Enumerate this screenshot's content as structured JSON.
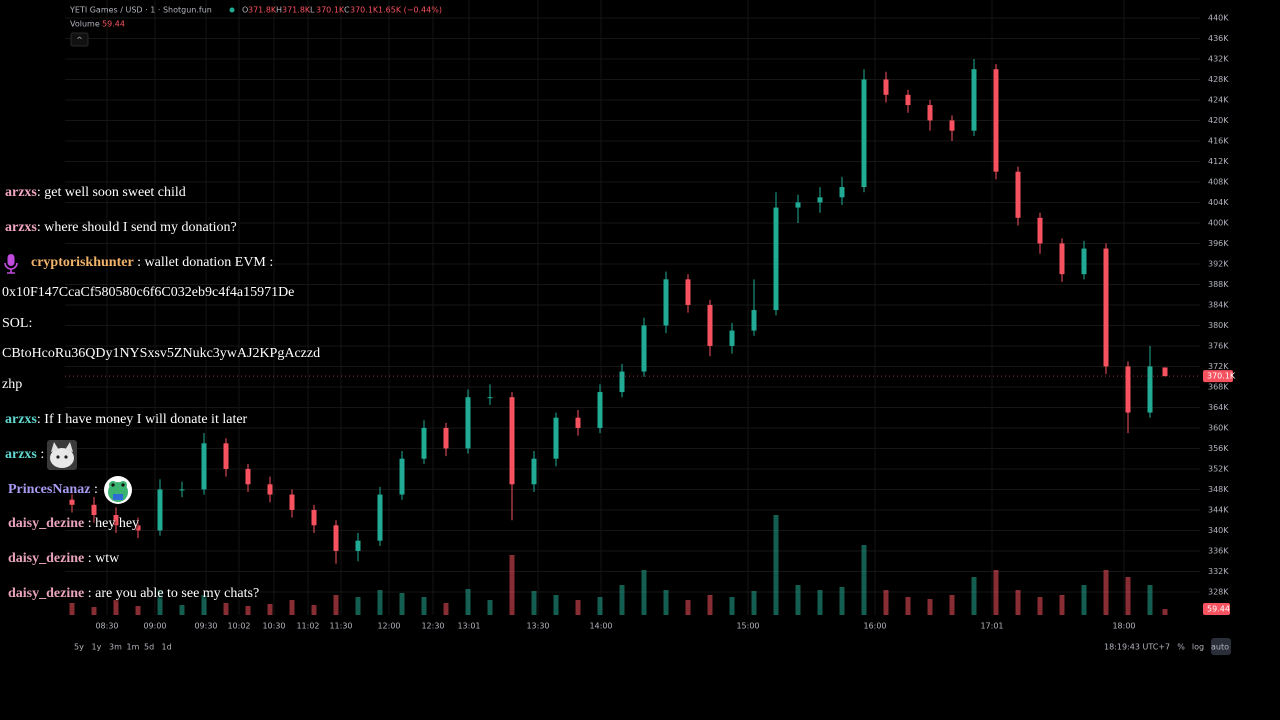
{
  "header": {
    "symbol": "YETI Games / USD · 1 · Shotgun.fun",
    "ohlc": [
      {
        "key": "O",
        "value": "371.8K"
      },
      {
        "key": "H",
        "value": "371.8K"
      },
      {
        "key": "L",
        "value": "370.1K"
      },
      {
        "key": "C",
        "value": "370.1K"
      }
    ],
    "change": "1.65K (−0.44%)",
    "volume_label": "Volume",
    "collapse": "^"
  },
  "chart_data": {
    "type": "candlestick",
    "up_color": "#22ab94",
    "down_color": "#f7525f",
    "grid": true,
    "open": [
      346000,
      345000,
      343000,
      341000,
      340000,
      348000,
      348000,
      357000,
      352000,
      349000,
      347000,
      344000,
      341000,
      336000,
      338000,
      347000,
      354000,
      360000,
      356000,
      366000,
      366000,
      349000,
      354000,
      362000,
      360000,
      367000,
      371000,
      380000,
      389000,
      384000,
      376000,
      379000,
      383000,
      403000,
      404000,
      405000,
      407000,
      428000,
      425000,
      423000,
      420000,
      418000,
      430000,
      410000,
      401000,
      396000,
      390000,
      395000,
      372000,
      363000,
      371800
    ],
    "high": [
      348000,
      346500,
      344500,
      342500,
      350000,
      349500,
      359000,
      358000,
      353000,
      350500,
      348000,
      345000,
      342000,
      339500,
      348500,
      355500,
      361500,
      361000,
      367500,
      368500,
      367000,
      355500,
      363000,
      363500,
      368500,
      372500,
      381500,
      390500,
      390000,
      385000,
      380500,
      389000,
      406000,
      405500,
      407000,
      409000,
      430000,
      429500,
      426000,
      424000,
      421000,
      432000,
      431000,
      411000,
      402000,
      397000,
      396500,
      396000,
      373000,
      376000,
      371800
    ],
    "low": [
      343500,
      341500,
      339500,
      338500,
      339000,
      346500,
      347000,
      350500,
      347500,
      345500,
      342500,
      339500,
      333500,
      334000,
      337000,
      346000,
      353000,
      354500,
      355000,
      364500,
      342000,
      347500,
      352500,
      358500,
      359000,
      366000,
      370000,
      378500,
      382500,
      374000,
      374500,
      378000,
      382000,
      400000,
      402000,
      403500,
      406000,
      423500,
      421500,
      418000,
      416000,
      417000,
      408500,
      399500,
      394000,
      388500,
      389000,
      370500,
      359000,
      362000,
      370100
    ],
    "close": [
      345000,
      343000,
      341000,
      340000,
      348000,
      348000,
      357000,
      352000,
      349000,
      347000,
      344000,
      341000,
      336000,
      338000,
      347000,
      354000,
      360000,
      356000,
      366000,
      366000,
      349000,
      354000,
      362000,
      360000,
      367000,
      371000,
      380000,
      389000,
      384000,
      376000,
      379000,
      383000,
      403000,
      404000,
      405000,
      407000,
      428000,
      425000,
      423000,
      420000,
      418000,
      430000,
      410000,
      401000,
      396000,
      390000,
      395000,
      372000,
      363000,
      372000,
      370100
    ],
    "volume": [
      120,
      80,
      150,
      90,
      250,
      100,
      200,
      120,
      90,
      110,
      150,
      100,
      200,
      180,
      250,
      220,
      180,
      120,
      260,
      150,
      600,
      240,
      200,
      150,
      180,
      300,
      450,
      250,
      150,
      200,
      180,
      240,
      1000,
      300,
      250,
      280,
      700,
      250,
      180,
      160,
      200,
      380,
      450,
      250,
      180,
      200,
      300,
      450,
      380,
      300,
      59.44
    ],
    "ylim": [
      323500,
      443500
    ],
    "volume_lim": [
      0,
      6150
    ],
    "yticks": [
      {
        "value": 440000,
        "label": "440K"
      },
      {
        "value": 436000,
        "label": "436K"
      },
      {
        "value": 432000,
        "label": "432K"
      },
      {
        "value": 428000,
        "label": "428K"
      },
      {
        "value": 424000,
        "label": "424K"
      },
      {
        "value": 420000,
        "label": "420K"
      },
      {
        "value": 416000,
        "label": "416K"
      },
      {
        "value": 412000,
        "label": "412K"
      },
      {
        "value": 408000,
        "label": "408K"
      },
      {
        "value": 404000,
        "label": "404K"
      },
      {
        "value": 400000,
        "label": "400K"
      },
      {
        "value": 396000,
        "label": "396K"
      },
      {
        "value": 392000,
        "label": "392K"
      },
      {
        "value": 388000,
        "label": "388K"
      },
      {
        "value": 384000,
        "label": "384K"
      },
      {
        "value": 380000,
        "label": "380K"
      },
      {
        "value": 376000,
        "label": "376K"
      },
      {
        "value": 372000,
        "label": "372K"
      },
      {
        "value": 368000,
        "label": "368K"
      },
      {
        "value": 364000,
        "label": "364K"
      },
      {
        "value": 360000,
        "label": "360K"
      },
      {
        "value": 356000,
        "label": "356K"
      },
      {
        "value": 352000,
        "label": "352K"
      },
      {
        "value": 348000,
        "label": "348K"
      },
      {
        "value": 344000,
        "label": "344K"
      },
      {
        "value": 340000,
        "label": "340K"
      },
      {
        "value": 336000,
        "label": "336K"
      },
      {
        "value": 332000,
        "label": "332K"
      },
      {
        "value": 328000,
        "label": "328K"
      }
    ],
    "x_labels": [
      "08:30",
      "09:00",
      "09:30",
      "10:02",
      "10:30",
      "11:02",
      "11:30",
      "12:00",
      "12:30",
      "13:01",
      "13:30",
      "14:00",
      "15:00",
      "16:00",
      "17:01",
      "18:00"
    ],
    "last_price": {
      "value": 370100,
      "label": "370.1K"
    },
    "last_volume": 59.44
  },
  "chat": {
    "messages": [
      {
        "user": "arzxs",
        "color": "#f3a8c4",
        "text": ": get well soon sweet child"
      },
      {
        "user": "arzxs",
        "color": "#f3a8c4",
        "text": ": where should I send my donation?"
      },
      {
        "user": "cryptoriskhunter",
        "color": "#f2b36b",
        "text": " : wallet donation EVM :",
        "lines": [
          "0x10F147CcaCf580580c6f6C032eb9c4f4a15971De",
          "SOL:",
          "CBtoHcoRu36QDy1NYSxsv5ZNukc3ywAJ2KPgAczzd",
          "zhp"
        ]
      },
      {
        "user": "arzxs",
        "color": "#5fd8cf",
        "text": ": If I have money I will donate it later"
      },
      {
        "user": "arzxs",
        "color": "#5fd8cf",
        "text": " :"
      },
      {
        "user": "PrincesNanaz",
        "color": "#a99cf2",
        "text": " :"
      },
      {
        "user": "daisy_dezine",
        "color": "#e9a3bd",
        "text": " : hey hey"
      },
      {
        "user": "daisy_dezine",
        "color": "#e9a3bd",
        "text": " : wtw"
      },
      {
        "user": "daisy_dezine",
        "color": "#e9a3bd",
        "text": " : are you able to see my chats?"
      }
    ]
  },
  "toolbar": {
    "ranges": [
      "5y",
      "1y",
      "3m",
      "1m",
      "5d",
      "1d"
    ],
    "clock": "18:19:43 UTC+7",
    "options": [
      "%",
      "log",
      "auto"
    ]
  }
}
